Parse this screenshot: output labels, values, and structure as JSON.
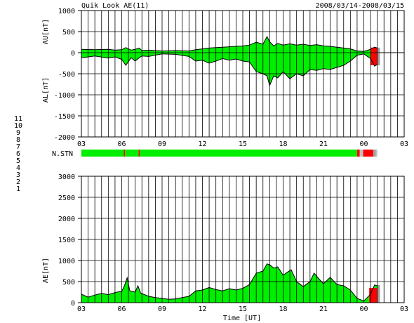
{
  "header": {
    "title": "Quik Look AE(11)",
    "date_range": "2008/03/14-2008/03/15"
  },
  "x_axis": {
    "label": "Time [UT]",
    "ticks": [
      "03",
      "06",
      "09",
      "12",
      "15",
      "18",
      "21",
      "00",
      "03"
    ],
    "range_hours": [
      3,
      27
    ]
  },
  "station_legend": {
    "labels": [
      "11",
      "10",
      "9",
      "8",
      "7",
      "6",
      "5",
      "4",
      "3",
      "2",
      "1"
    ],
    "colors": [
      "#00d8e8",
      "#ff00ff",
      "#0000c0",
      "#e8e800",
      "#a0c020",
      "#ff0000",
      "#c0c0c0",
      "#a0a0a0",
      "#00a0a0",
      "#a00080",
      "#0000ff"
    ]
  },
  "station_bar": {
    "label": "N.STN",
    "segments": [
      {
        "from": 3.0,
        "to": 6.15,
        "stations": "11"
      },
      {
        "from": 6.15,
        "to": 6.25,
        "stations": "6"
      },
      {
        "from": 6.25,
        "to": 7.25,
        "stations": "11"
      },
      {
        "from": 7.25,
        "to": 7.35,
        "stations": "6"
      },
      {
        "from": 7.35,
        "to": 23.5,
        "stations": "11"
      },
      {
        "from": 23.5,
        "to": 23.7,
        "stations": "6"
      },
      {
        "from": 23.7,
        "to": 23.95,
        "stations": "5"
      },
      {
        "from": 23.95,
        "to": 24.7,
        "stations": "6"
      },
      {
        "from": 24.7,
        "to": 24.9,
        "stations": "4"
      },
      {
        "from": 24.9,
        "to": 25.0,
        "stations": "5"
      }
    ]
  },
  "chart_data": [
    {
      "type": "area",
      "name": "AU/AL",
      "ylabel_upper": "AU[nT]",
      "ylabel_lower": "AL[nT]",
      "ylim": [
        -2000,
        1000
      ],
      "yticks": [
        1000,
        500,
        0,
        -500,
        -1000,
        -1500,
        -2000
      ],
      "grid": true,
      "x": [
        3.0,
        4.0,
        5.0,
        5.5,
        6.0,
        6.3,
        6.7,
        7.0,
        7.3,
        7.5,
        8.0,
        9.0,
        10.0,
        11.0,
        11.5,
        12.0,
        12.5,
        13.0,
        13.5,
        14.0,
        14.5,
        15.0,
        15.5,
        16.0,
        16.5,
        16.8,
        17.0,
        17.3,
        17.6,
        18.0,
        18.5,
        19.0,
        19.5,
        20.0,
        20.5,
        21.0,
        21.5,
        22.0,
        22.5,
        23.0,
        23.5,
        24.0,
        24.5,
        24.8,
        25.0
      ],
      "au": [
        80,
        70,
        80,
        60,
        70,
        120,
        60,
        80,
        110,
        50,
        60,
        40,
        50,
        40,
        70,
        90,
        110,
        120,
        130,
        140,
        150,
        160,
        180,
        250,
        200,
        380,
        260,
        160,
        220,
        180,
        210,
        180,
        200,
        170,
        190,
        160,
        150,
        130,
        110,
        90,
        40,
        30,
        80,
        130,
        110
      ],
      "al": [
        -120,
        -80,
        -130,
        -100,
        -160,
        -300,
        -120,
        -200,
        -120,
        -80,
        -90,
        -30,
        -40,
        -90,
        -200,
        -180,
        -250,
        -200,
        -140,
        -180,
        -150,
        -200,
        -220,
        -450,
        -500,
        -550,
        -780,
        -550,
        -600,
        -450,
        -620,
        -500,
        -550,
        -400,
        -420,
        -380,
        -400,
        -350,
        -300,
        -200,
        -60,
        -30,
        -140,
        -320,
        -280
      ],
      "x_red": [
        24.5,
        25.0
      ],
      "x_grey": [
        25.0,
        25.2
      ]
    },
    {
      "type": "area",
      "name": "AE",
      "ylabel": "AE[nT]",
      "ylim": [
        0,
        3000
      ],
      "yticks": [
        3000,
        2500,
        2000,
        1500,
        1000,
        500,
        0
      ],
      "grid": true,
      "x": [
        3.0,
        3.5,
        4.0,
        4.5,
        5.0,
        5.5,
        6.0,
        6.2,
        6.4,
        6.6,
        7.0,
        7.2,
        7.4,
        8.0,
        8.5,
        9.0,
        9.5,
        10.0,
        10.5,
        11.0,
        11.5,
        12.0,
        12.5,
        13.0,
        13.5,
        14.0,
        14.5,
        15.0,
        15.5,
        16.0,
        16.5,
        16.8,
        17.0,
        17.3,
        17.6,
        18.0,
        18.3,
        18.6,
        19.0,
        19.5,
        20.0,
        20.3,
        20.7,
        21.0,
        21.5,
        22.0,
        22.5,
        23.0,
        23.5,
        24.0,
        24.5,
        24.8,
        25.0
      ],
      "values": [
        200,
        130,
        180,
        220,
        190,
        240,
        270,
        400,
        590,
        280,
        250,
        400,
        230,
        150,
        120,
        100,
        80,
        90,
        120,
        150,
        280,
        300,
        360,
        310,
        280,
        330,
        300,
        340,
        430,
        700,
        750,
        920,
        900,
        820,
        850,
        650,
        720,
        780,
        500,
        380,
        500,
        700,
        550,
        450,
        600,
        430,
        400,
        300,
        100,
        40,
        200,
        420,
        400
      ],
      "x_red": [
        24.4,
        25.0
      ],
      "x_grey": [
        25.0,
        25.2
      ]
    }
  ]
}
